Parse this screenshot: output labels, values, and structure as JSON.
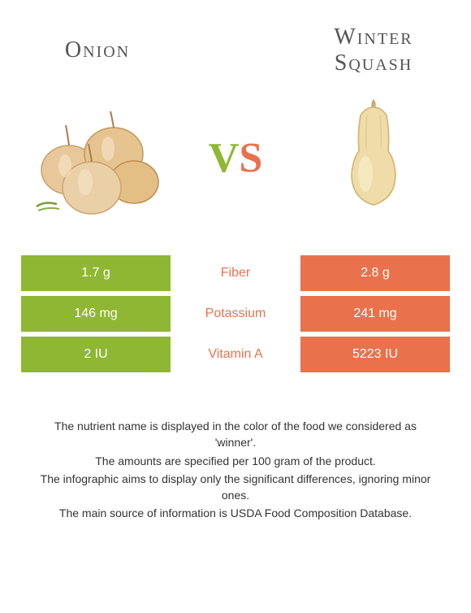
{
  "colors": {
    "left": "#8fb733",
    "right": "#e9724d",
    "text_gray": "#555555"
  },
  "foods": {
    "left": {
      "title": "Onion"
    },
    "right": {
      "title": "Winter Squash"
    }
  },
  "vs": {
    "v": "V",
    "s": "S"
  },
  "nutrients": [
    {
      "label": "Fiber",
      "left": "1.7 g",
      "right": "2.8 g",
      "winner": "right"
    },
    {
      "label": "Potassium",
      "left": "146 mg",
      "right": "241 mg",
      "winner": "right"
    },
    {
      "label": "Vitamin A",
      "left": "2 IU",
      "right": "5223 IU",
      "winner": "right"
    }
  ],
  "footer": [
    "The nutrient name is displayed in the color of the food we considered as 'winner'.",
    "The amounts are specified per 100 gram of the product.",
    "The infographic aims to display only the significant differences, ignoring minor ones.",
    "The main source of information is USDA Food Composition Database."
  ]
}
